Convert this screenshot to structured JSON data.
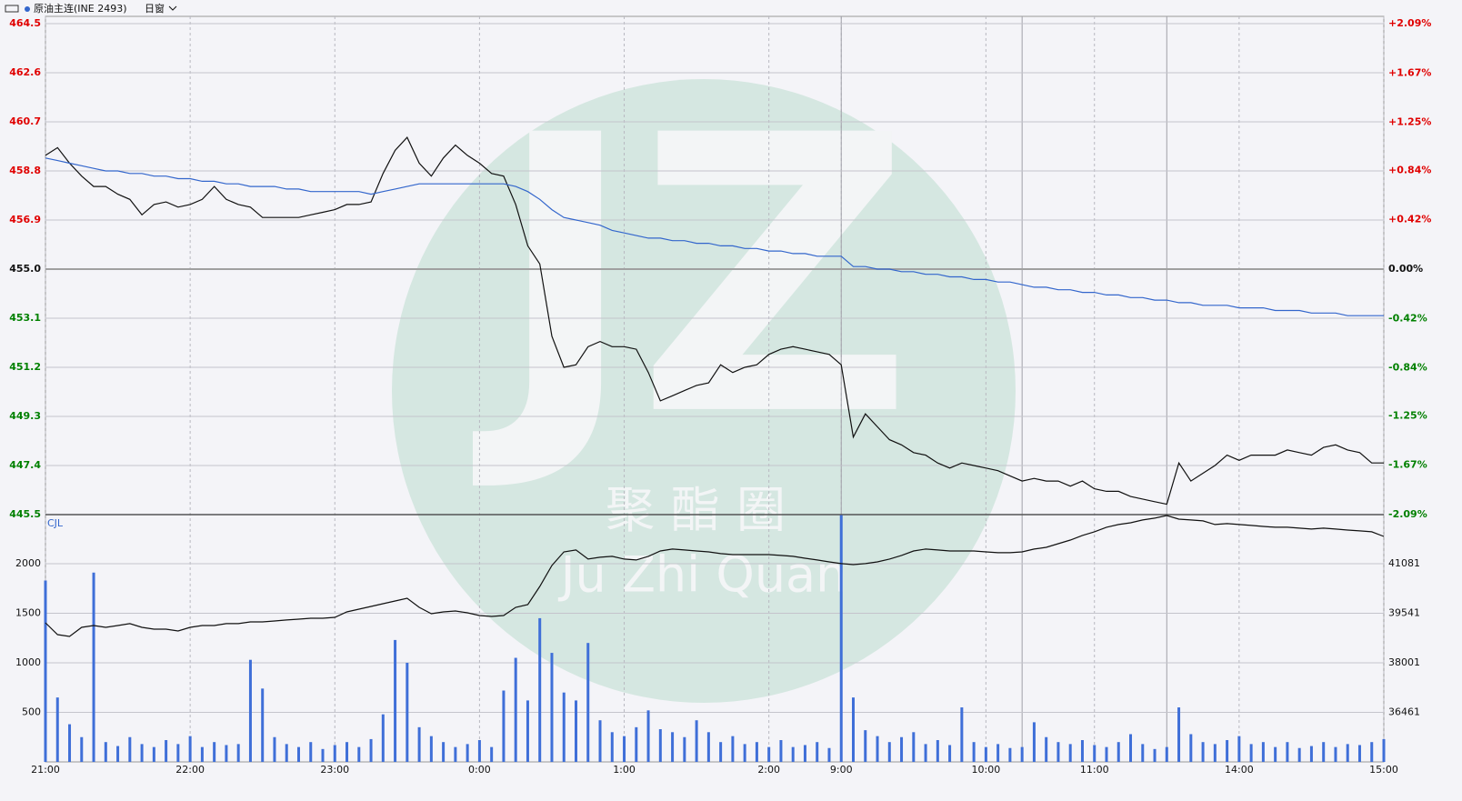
{
  "header": {
    "symbol": "原油主连(INE 2493)",
    "period": "日窗"
  },
  "watermark": {
    "letters": "JZ",
    "name_cn": "聚酯圈",
    "name_en": "Ju Zhi Quan"
  },
  "chart_data": [
    {
      "type": "line",
      "x": [
        0,
        5,
        10,
        15,
        20,
        25,
        30,
        35,
        40,
        45,
        50,
        55,
        60,
        65,
        70,
        75,
        80,
        85,
        90,
        95,
        100,
        105,
        110,
        115,
        120,
        125,
        130,
        135,
        140,
        145,
        150,
        155,
        160,
        165,
        170,
        175,
        180,
        185,
        190,
        195,
        200,
        205,
        210,
        215,
        220,
        225,
        230,
        235,
        240,
        245,
        250,
        255,
        260,
        265,
        270,
        275,
        280,
        285,
        290,
        295,
        300,
        305,
        310,
        315,
        320,
        325,
        330,
        335,
        340,
        345,
        350,
        355,
        360,
        365,
        370,
        375,
        380,
        385,
        390,
        395,
        400,
        405,
        410,
        415,
        420,
        425,
        430,
        435,
        440,
        445,
        450,
        455,
        460,
        465,
        470,
        475,
        480,
        485,
        490,
        495,
        500,
        505,
        510,
        515,
        520,
        525,
        530,
        535,
        540,
        545,
        550,
        555
      ],
      "xlim": [
        0,
        555
      ],
      "ylim": [
        445.5,
        464.5
      ],
      "yticks": [
        445.5,
        447.4,
        449.3,
        451.2,
        453.1,
        {
          "value": 455,
          "label": "455.0"
        },
        456.9,
        458.8,
        460.7,
        462.6,
        464.5
      ],
      "baseline": 455,
      "y2lim": [
        -2.09,
        2.09
      ],
      "y2ticks": [
        {
          "value": -2.09,
          "label": "-2.09%"
        },
        {
          "value": -1.67,
          "label": "-1.67%"
        },
        {
          "value": -1.25,
          "label": "-1.25%"
        },
        {
          "value": -0.84,
          "label": "-0.84%"
        },
        {
          "value": -0.42,
          "label": "-0.42%"
        },
        {
          "value": 0,
          "label": "0.00%"
        },
        {
          "value": 0.42,
          "label": "+0.42%"
        },
        {
          "value": 0.84,
          "label": "+0.84%"
        },
        {
          "value": 1.25,
          "label": "+1.25%"
        },
        {
          "value": 1.67,
          "label": "+1.67%"
        },
        {
          "value": 2.09,
          "label": "+2.09%"
        }
      ],
      "grid": true,
      "series": [
        {
          "color": "#111111",
          "values": [
            459.4,
            459.7,
            459.1,
            458.6,
            458.2,
            458.2,
            457.9,
            457.7,
            457.1,
            457.5,
            457.6,
            457.4,
            457.5,
            457.7,
            458.2,
            457.7,
            457.5,
            457.4,
            457.0,
            457.0,
            457.0,
            457.0,
            457.1,
            457.2,
            457.3,
            457.5,
            457.5,
            457.6,
            458.7,
            459.6,
            460.1,
            459.1,
            458.6,
            459.3,
            459.8,
            459.4,
            459.1,
            458.7,
            458.6,
            457.5,
            455.9,
            455.2,
            452.4,
            451.2,
            451.3,
            452.0,
            452.2,
            452.0,
            452.0,
            451.9,
            451.0,
            449.9,
            450.1,
            450.3,
            450.5,
            450.6,
            451.3,
            451.0,
            451.2,
            451.3,
            451.7,
            451.9,
            452.0,
            451.9,
            451.8,
            451.7,
            451.3,
            448.5,
            449.4,
            448.9,
            448.4,
            448.2,
            447.9,
            447.8,
            447.5,
            447.3,
            447.5,
            447.4,
            447.3,
            447.2,
            447.0,
            446.8,
            446.9,
            446.8,
            446.8,
            446.6,
            446.8,
            446.5,
            446.4,
            446.4,
            446.2,
            446.1,
            446.0,
            445.9,
            447.5,
            446.8,
            447.1,
            447.4,
            447.8,
            447.6,
            447.8,
            447.8,
            447.8,
            448.0,
            447.9,
            447.8,
            448.1,
            448.2,
            448.0,
            447.9,
            447.5,
            447.5
          ]
        },
        {
          "color": "#3366cc",
          "values": [
            459.3,
            459.2,
            459.1,
            459.0,
            458.9,
            458.8,
            458.8,
            458.7,
            458.7,
            458.6,
            458.6,
            458.5,
            458.5,
            458.4,
            458.4,
            458.3,
            458.3,
            458.2,
            458.2,
            458.2,
            458.1,
            458.1,
            458.0,
            458.0,
            458.0,
            458.0,
            458.0,
            457.9,
            458.0,
            458.1,
            458.2,
            458.3,
            458.3,
            458.3,
            458.3,
            458.3,
            458.3,
            458.3,
            458.3,
            458.2,
            458.0,
            457.7,
            457.3,
            457.0,
            456.9,
            456.8,
            456.7,
            456.5,
            456.4,
            456.3,
            456.2,
            456.2,
            456.1,
            456.1,
            456.0,
            456.0,
            455.9,
            455.9,
            455.8,
            455.8,
            455.7,
            455.7,
            455.6,
            455.6,
            455.5,
            455.5,
            455.5,
            455.1,
            455.1,
            455.0,
            455.0,
            454.9,
            454.9,
            454.8,
            454.8,
            454.7,
            454.7,
            454.6,
            454.6,
            454.5,
            454.5,
            454.4,
            454.3,
            454.3,
            454.2,
            454.2,
            454.1,
            454.1,
            454.0,
            454.0,
            453.9,
            453.9,
            453.8,
            453.8,
            453.7,
            453.7,
            453.6,
            453.6,
            453.6,
            453.5,
            453.5,
            453.5,
            453.4,
            453.4,
            453.4,
            453.3,
            453.3,
            453.3,
            453.2,
            453.2,
            453.2,
            453.2
          ]
        }
      ]
    },
    {
      "type": "bar",
      "label": "CJL",
      "xlim": [
        0,
        555
      ],
      "xticks": [
        {
          "value": 0,
          "label": "21:00"
        },
        {
          "value": 60,
          "label": "22:00"
        },
        {
          "value": 120,
          "label": "23:00"
        },
        {
          "value": 180,
          "label": "0:00"
        },
        {
          "value": 240,
          "label": "1:00"
        },
        {
          "value": 300,
          "label": "2:00"
        },
        {
          "value": 330,
          "label": "9:00"
        },
        {
          "value": 390,
          "label": "10:00"
        },
        {
          "value": 435,
          "label": "11:00"
        },
        {
          "value": 495,
          "label": "14:00"
        },
        {
          "value": 555,
          "label": "15:00"
        }
      ],
      "session_breaks": [
        330,
        405,
        465
      ],
      "ylim": [
        0,
        2495
      ],
      "yticks": [
        500,
        1000,
        1500,
        2000
      ],
      "y2lim": [
        34921,
        42606
      ],
      "y2ticks": [
        36461,
        38001,
        39541,
        41081
      ],
      "grid": true,
      "series": [
        {
          "color": "#3f6fd8",
          "values": [
            1830,
            650,
            380,
            250,
            1910,
            200,
            160,
            250,
            180,
            150,
            220,
            180,
            260,
            150,
            200,
            170,
            180,
            1030,
            740,
            250,
            180,
            150,
            200,
            130,
            170,
            200,
            150,
            230,
            480,
            1230,
            1000,
            350,
            260,
            200,
            150,
            180,
            220,
            150,
            720,
            1050,
            620,
            1450,
            1100,
            700,
            620,
            1200,
            420,
            300,
            260,
            350,
            520,
            330,
            300,
            250,
            420,
            300,
            200,
            260,
            180,
            200,
            150,
            220,
            150,
            170,
            200,
            140,
            2490,
            650,
            320,
            260,
            200,
            250,
            300,
            180,
            220,
            170,
            550,
            200,
            150,
            180,
            140,
            150,
            400,
            250,
            200,
            180,
            220,
            170,
            150,
            200,
            280,
            180,
            130,
            150,
            550,
            280,
            200,
            180,
            220,
            260,
            180,
            200,
            150,
            200,
            140,
            160,
            200,
            150,
            180,
            170,
            200,
            230
          ]
        },
        {
          "color": "#111111",
          "axis": "y2",
          "values": [
            39245,
            38877,
            38821,
            39103,
            39160,
            39103,
            39160,
            39217,
            39103,
            39047,
            39047,
            38990,
            39103,
            39160,
            39160,
            39217,
            39217,
            39273,
            39273,
            39301,
            39330,
            39358,
            39386,
            39386,
            39414,
            39584,
            39669,
            39753,
            39838,
            39923,
            40008,
            39725,
            39527,
            39584,
            39612,
            39556,
            39471,
            39443,
            39471,
            39725,
            39810,
            40375,
            41025,
            41449,
            41506,
            41223,
            41280,
            41308,
            41223,
            41195,
            41308,
            41477,
            41534,
            41506,
            41477,
            41449,
            41393,
            41364,
            41364,
            41364,
            41364,
            41336,
            41308,
            41251,
            41195,
            41138,
            41082,
            41053,
            41082,
            41138,
            41223,
            41336,
            41477,
            41534,
            41506,
            41477,
            41477,
            41477,
            41449,
            41421,
            41421,
            41449,
            41534,
            41590,
            41703,
            41816,
            41958,
            42071,
            42212,
            42297,
            42353,
            42438,
            42495,
            42579,
            42466,
            42438,
            42410,
            42297,
            42325,
            42297,
            42269,
            42240,
            42212,
            42212,
            42184,
            42156,
            42184,
            42156,
            42127,
            42099,
            42071,
            41929
          ]
        }
      ]
    }
  ]
}
